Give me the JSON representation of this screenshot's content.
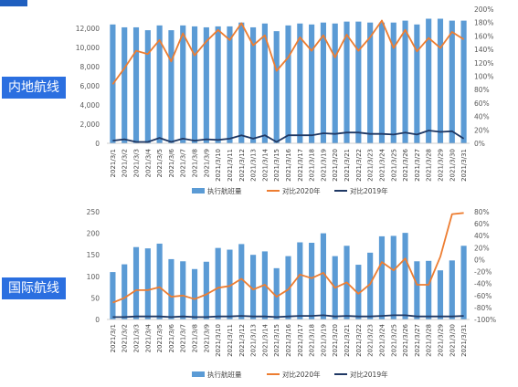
{
  "panels": [
    {
      "label": "内地航线"
    },
    {
      "label": "国际航线"
    }
  ],
  "colors": {
    "bar": "#5b9bd5",
    "line2020": "#ed7d31",
    "line2019": "#1f3864",
    "label_bg": "#2b6fe0"
  },
  "chart_data": [
    {
      "type": "bar",
      "name": "内地航线",
      "categories": [
        "2021/3/1",
        "2021/3/2",
        "2021/3/3",
        "2021/3/4",
        "2021/3/5",
        "2021/3/6",
        "2021/3/7",
        "2021/3/8",
        "2021/3/9",
        "2021/3/10",
        "2021/3/11",
        "2021/3/12",
        "2021/3/13",
        "2021/3/14",
        "2021/3/15",
        "2021/3/16",
        "2021/3/17",
        "2021/3/18",
        "2021/3/19",
        "2021/3/20",
        "2021/3/21",
        "2021/3/22",
        "2021/3/23",
        "2021/3/24",
        "2021/3/25",
        "2021/3/26",
        "2021/3/27",
        "2021/3/28",
        "2021/3/29",
        "2021/3/30",
        "2021/3/31"
      ],
      "series": [
        {
          "name": "执行航班量",
          "axis": "left",
          "type": "bar",
          "values": [
            12400,
            12100,
            12100,
            11800,
            12300,
            11800,
            12300,
            12200,
            12100,
            12200,
            12200,
            12600,
            12100,
            12500,
            11700,
            12300,
            12500,
            12400,
            12600,
            12500,
            12700,
            12700,
            12600,
            12600,
            12600,
            12800,
            12400,
            13000,
            13000,
            12800,
            12800
          ]
        },
        {
          "name": "对比2020年",
          "axis": "right",
          "type": "line",
          "values": [
            0.88,
            1.12,
            1.38,
            1.33,
            1.54,
            1.22,
            1.64,
            1.31,
            1.52,
            1.69,
            1.54,
            1.79,
            1.46,
            1.61,
            1.08,
            1.28,
            1.58,
            1.38,
            1.61,
            1.28,
            1.62,
            1.38,
            1.58,
            1.83,
            1.42,
            1.69,
            1.37,
            1.57,
            1.42,
            1.66,
            1.55
          ]
        },
        {
          "name": "对比2019年",
          "axis": "right",
          "type": "line",
          "values": [
            0.04,
            0.06,
            0.02,
            0.02,
            0.08,
            0.02,
            0.07,
            0.04,
            0.06,
            0.05,
            0.07,
            0.12,
            0.07,
            0.12,
            0.02,
            0.12,
            0.12,
            0.12,
            0.15,
            0.14,
            0.16,
            0.16,
            0.14,
            0.14,
            0.13,
            0.16,
            0.13,
            0.19,
            0.17,
            0.18,
            0.07
          ]
        }
      ],
      "y_left": {
        "min": 0,
        "max": 14000,
        "step": 2000
      },
      "y_left_ticks": [
        "0",
        "2,000",
        "4,000",
        "6,000",
        "8,000",
        "10,000",
        "12,000"
      ],
      "y_right": {
        "min": 0,
        "max": 2.0,
        "step": 0.2
      },
      "y_right_ticks": [
        "0%",
        "20%",
        "40%",
        "60%",
        "80%",
        "100%",
        "120%",
        "140%",
        "160%",
        "180%",
        "200%"
      ],
      "legend": [
        "执行航班量",
        "对比2020年",
        "对比2019年"
      ],
      "legend_position": "bottom"
    },
    {
      "type": "bar",
      "name": "国际航线",
      "categories": [
        "2021/3/1",
        "2021/3/2",
        "2021/3/3",
        "2021/3/4",
        "2021/3/5",
        "2021/3/6",
        "2021/3/7",
        "2021/3/8",
        "2021/3/9",
        "2021/3/10",
        "2021/3/11",
        "2021/3/12",
        "2021/3/13",
        "2021/3/14",
        "2021/3/15",
        "2021/3/16",
        "2021/3/17",
        "2021/3/18",
        "2021/3/19",
        "2021/3/20",
        "2021/3/21",
        "2021/3/22",
        "2021/3/23",
        "2021/3/24",
        "2021/3/25",
        "2021/3/26",
        "2021/3/27",
        "2021/3/28",
        "2021/3/29",
        "2021/3/30",
        "2021/3/31"
      ],
      "series": [
        {
          "name": "执行航班量",
          "axis": "left",
          "type": "bar",
          "values": [
            110,
            128,
            168,
            165,
            176,
            140,
            135,
            117,
            134,
            166,
            162,
            175,
            150,
            158,
            119,
            147,
            179,
            178,
            200,
            147,
            171,
            127,
            155,
            193,
            194,
            201,
            135,
            136,
            114,
            137,
            171
          ]
        },
        {
          "name": "对比2020年",
          "axis": "right",
          "type": "line",
          "values": [
            -0.72,
            -0.64,
            -0.51,
            -0.51,
            -0.46,
            -0.62,
            -0.6,
            -0.66,
            -0.58,
            -0.47,
            -0.44,
            -0.32,
            -0.5,
            -0.42,
            -0.62,
            -0.5,
            -0.25,
            -0.31,
            -0.22,
            -0.47,
            -0.38,
            -0.57,
            -0.41,
            -0.04,
            -0.18,
            0.02,
            -0.42,
            -0.42,
            0.05,
            0.76,
            0.78
          ]
        },
        {
          "name": "对比2019年",
          "axis": "right",
          "type": "line",
          "values": [
            -0.96,
            -0.96,
            -0.95,
            -0.95,
            -0.95,
            -0.96,
            -0.95,
            -0.96,
            -0.96,
            -0.95,
            -0.95,
            -0.94,
            -0.95,
            -0.95,
            -0.96,
            -0.95,
            -0.94,
            -0.94,
            -0.93,
            -0.95,
            -0.94,
            -0.95,
            -0.95,
            -0.94,
            -0.93,
            -0.93,
            -0.95,
            -0.95,
            -0.95,
            -0.95,
            -0.94
          ]
        }
      ],
      "y_left": {
        "min": 0,
        "max": 250,
        "step": 50
      },
      "y_left_ticks": [
        "0",
        "50",
        "100",
        "150",
        "200",
        "250"
      ],
      "y_right": {
        "min": -1.0,
        "max": 0.8,
        "step": 0.2
      },
      "y_right_ticks": [
        "-100%",
        "-80%",
        "-60%",
        "-40%",
        "-20%",
        "0%",
        "20%",
        "40%",
        "60%",
        "80%"
      ],
      "legend": [
        "执行航班量",
        "对比2020年",
        "对比2019年"
      ],
      "legend_position": "bottom"
    }
  ]
}
